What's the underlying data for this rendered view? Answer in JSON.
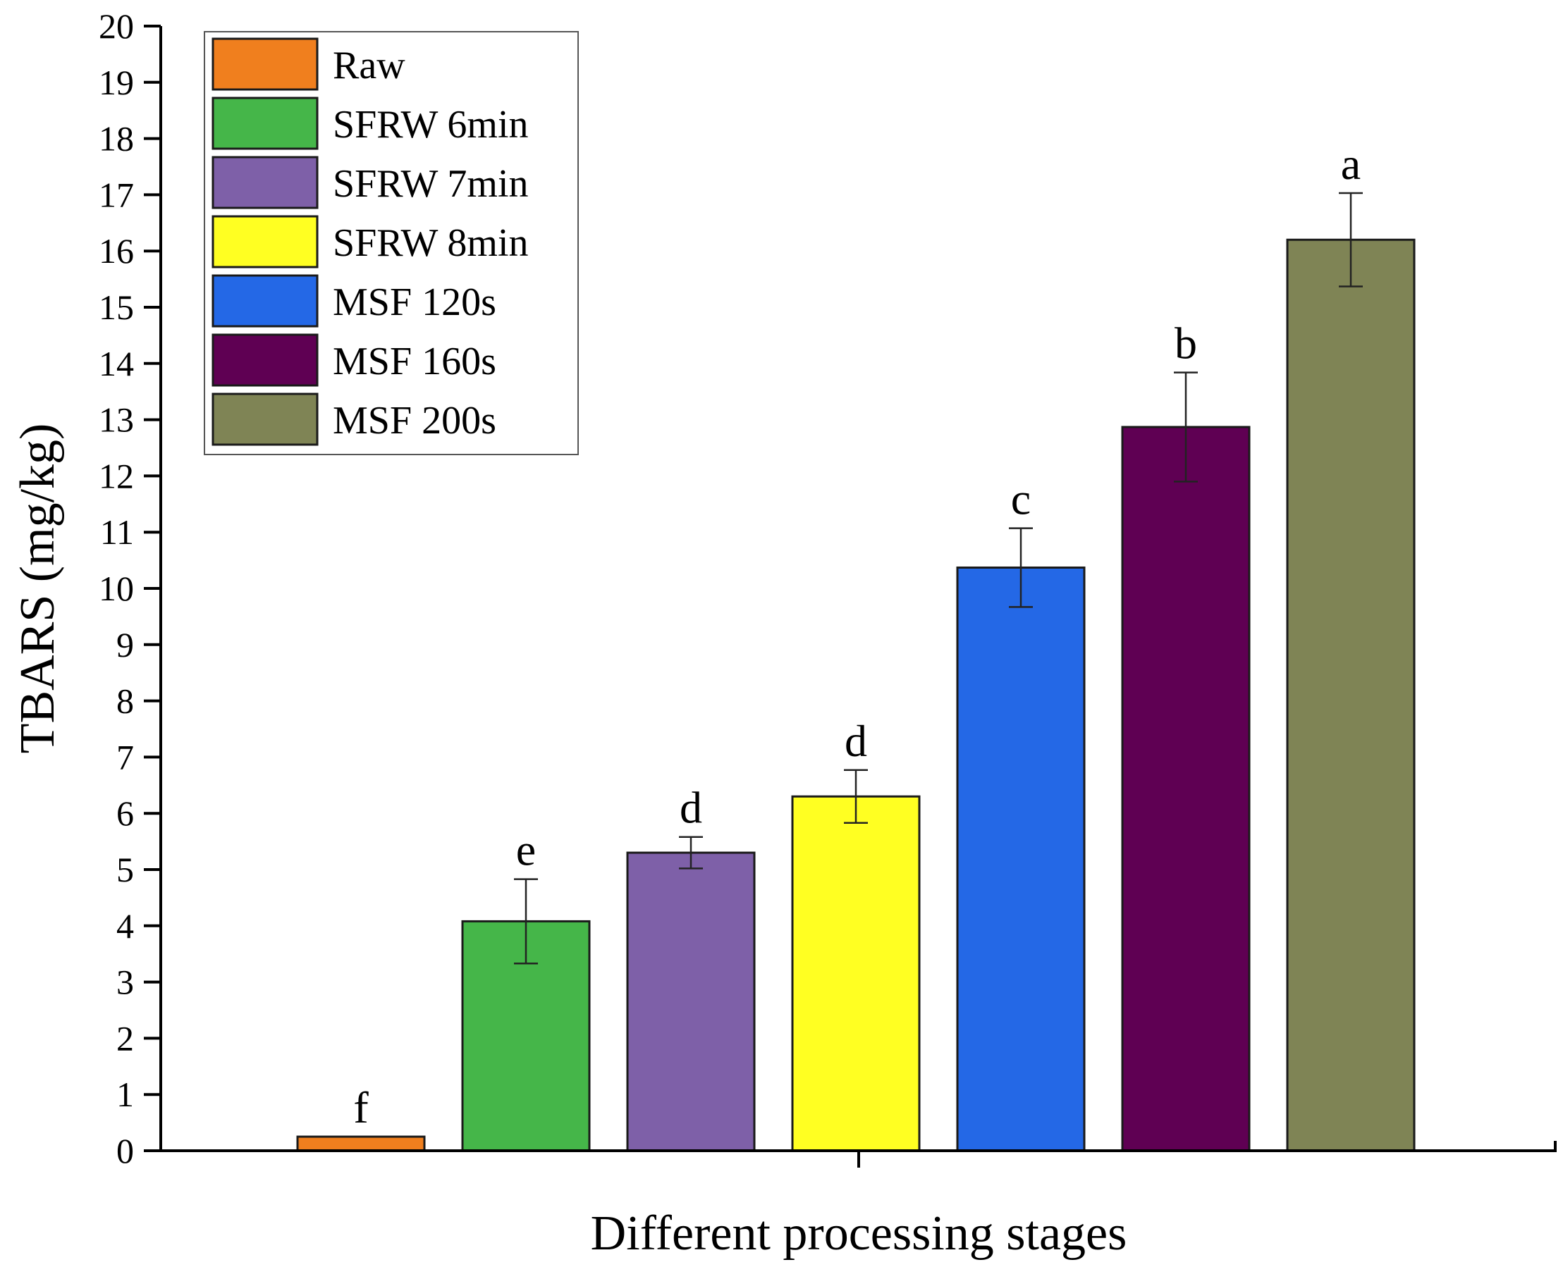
{
  "chart_data": {
    "type": "bar",
    "title": "",
    "xlabel": "Different processing stages",
    "ylabel": "TBARS (mg/kg)",
    "ylim": [
      0,
      20
    ],
    "yticks": [
      0,
      1,
      2,
      3,
      4,
      5,
      6,
      7,
      8,
      9,
      10,
      11,
      12,
      13,
      14,
      15,
      16,
      17,
      18,
      19,
      20
    ],
    "legend_position": "top-left",
    "series": [
      {
        "name": "Raw",
        "value": 0.25,
        "error": 0,
        "label": "f",
        "color": "#F07F1E"
      },
      {
        "name": "SFRW 6min",
        "value": 4.08,
        "error": 0.75,
        "label": "e",
        "color": "#45B649"
      },
      {
        "name": "SFRW 7min",
        "value": 5.3,
        "error": 0.28,
        "label": "d",
        "color": "#7E60A8"
      },
      {
        "name": "SFRW 8min",
        "value": 6.3,
        "error": 0.47,
        "label": "d",
        "color": "#FFFF22"
      },
      {
        "name": "MSF 120s",
        "value": 10.37,
        "error": 0.7,
        "label": "c",
        "color": "#2468E6"
      },
      {
        "name": "MSF 160s",
        "value": 12.87,
        "error": 0.97,
        "label": "b",
        "color": "#5F0053"
      },
      {
        "name": "MSF 200s",
        "value": 16.2,
        "error": 0.83,
        "label": "a",
        "color": "#7F8455"
      }
    ]
  }
}
